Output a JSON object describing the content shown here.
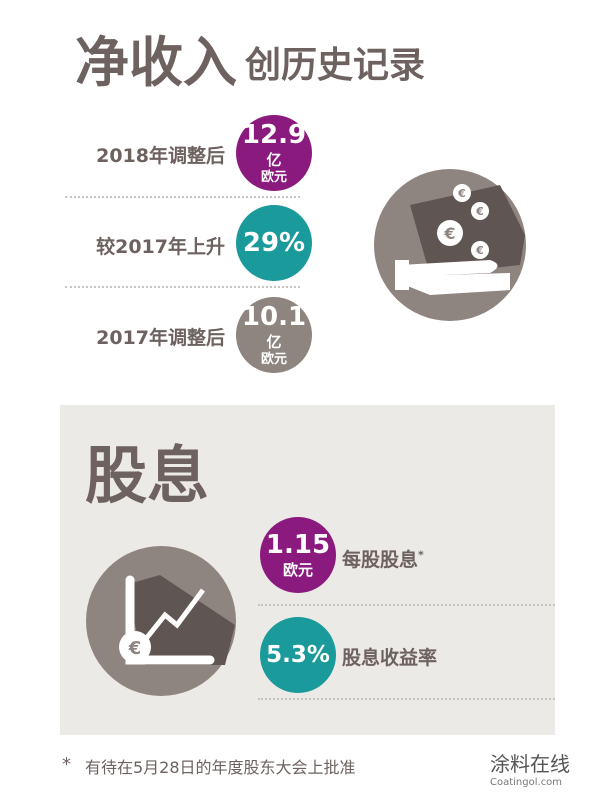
{
  "header": {
    "title": "净收入",
    "subtitle": "创历史记录"
  },
  "stats": [
    {
      "label": "2018年调整后",
      "value": "12.9",
      "unit": "亿",
      "currency": "欧元"
    },
    {
      "label": "较2017年上升",
      "value": "29%"
    },
    {
      "label": "2017年调整后",
      "value": "10.1",
      "unit": "亿",
      "currency": "欧元"
    }
  ],
  "dividend": {
    "title": "股息",
    "items": [
      {
        "value": "1.15",
        "currency": "欧元",
        "label": "每股股息",
        "mark": "*"
      },
      {
        "value": "5.3%",
        "label": "股息收益率"
      }
    ]
  },
  "footnote": {
    "mark": "*",
    "text": "有待在5月28日的年度股东大会上批准"
  },
  "watermark": {
    "name": "涂料在线",
    "url": "Coatingol.com"
  }
}
